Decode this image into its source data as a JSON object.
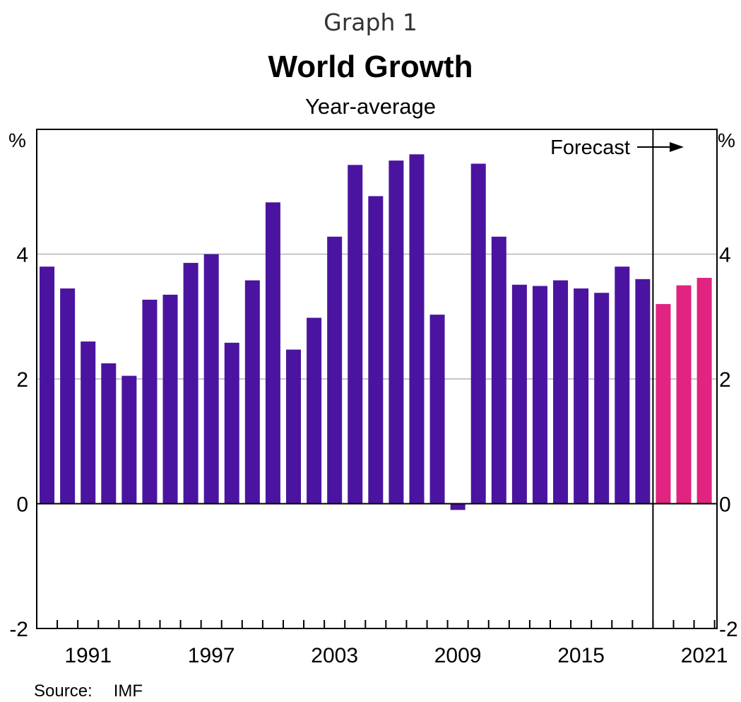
{
  "header": {
    "graph_label": "Graph 1",
    "title": "World Growth",
    "subtitle": "Year-average"
  },
  "footer": {
    "source_label": "Source:",
    "source_value": "IMF"
  },
  "chart_data": {
    "type": "bar",
    "title": "World Growth",
    "subtitle": "Year-average",
    "xlabel": "",
    "ylabel": "%",
    "ylim": [
      -2,
      6
    ],
    "yticks": [
      -2,
      0,
      2,
      4
    ],
    "x_tick_labels": [
      "1991",
      "1997",
      "2003",
      "2009",
      "2015",
      "2021"
    ],
    "right_axis": true,
    "grid": true,
    "forecast_start": 2019,
    "annotation": "Forecast",
    "colors": {
      "actual": "#4b14a0",
      "forecast": "#e0247f",
      "grid": "#b4b4b4"
    },
    "series": [
      {
        "x": [
          1989,
          1990,
          1991,
          1992,
          1993,
          1994,
          1995,
          1996,
          1997,
          1998,
          1999,
          2000,
          2001,
          2002,
          2003,
          2004,
          2005,
          2006,
          2007,
          2008,
          2009,
          2010,
          2011,
          2012,
          2013,
          2014,
          2015,
          2016,
          2017,
          2018
        ],
        "values": [
          3.8,
          3.45,
          2.6,
          2.25,
          2.05,
          3.27,
          3.35,
          3.86,
          4.0,
          2.58,
          3.58,
          4.83,
          2.47,
          2.98,
          4.28,
          5.43,
          4.93,
          5.5,
          5.6,
          3.03,
          -0.1,
          5.45,
          4.28,
          3.51,
          3.49,
          3.58,
          3.45,
          3.38,
          3.8,
          3.6
        ]
      },
      {
        "x": [
          2019,
          2020,
          2021
        ],
        "values": [
          3.2,
          3.5,
          3.62
        ]
      }
    ]
  }
}
